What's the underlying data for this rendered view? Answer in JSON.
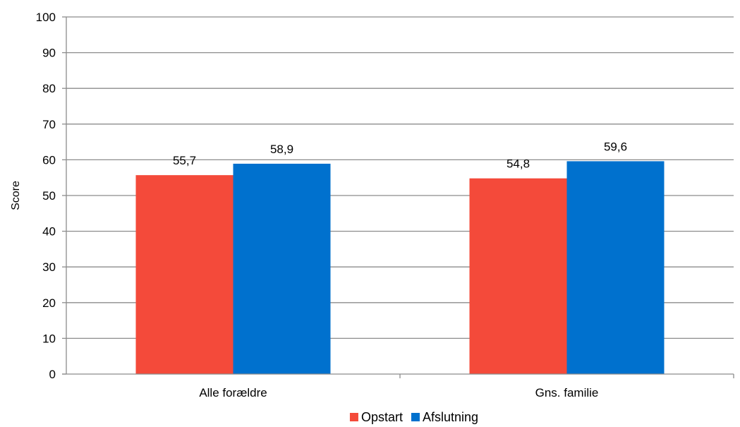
{
  "chart_data": {
    "type": "bar",
    "title": "",
    "xlabel": "",
    "ylabel": "Score",
    "ylim": [
      0,
      100
    ],
    "yticks": [
      "0",
      "10",
      "20",
      "30",
      "40",
      "50",
      "60",
      "70",
      "80",
      "90",
      "100"
    ],
    "grid": true,
    "legend_position": "bottom",
    "categories": [
      "Alle forældre",
      "Gns. familie"
    ],
    "series": [
      {
        "name": "Opstart",
        "color": "#f44a3a",
        "values": [
          55.7,
          54.8
        ],
        "labels": [
          "55,7",
          "54,8"
        ]
      },
      {
        "name": "Afslutning",
        "color": "#0071ce",
        "values": [
          58.9,
          59.6
        ],
        "labels": [
          "58,9",
          "59,6"
        ]
      }
    ]
  }
}
